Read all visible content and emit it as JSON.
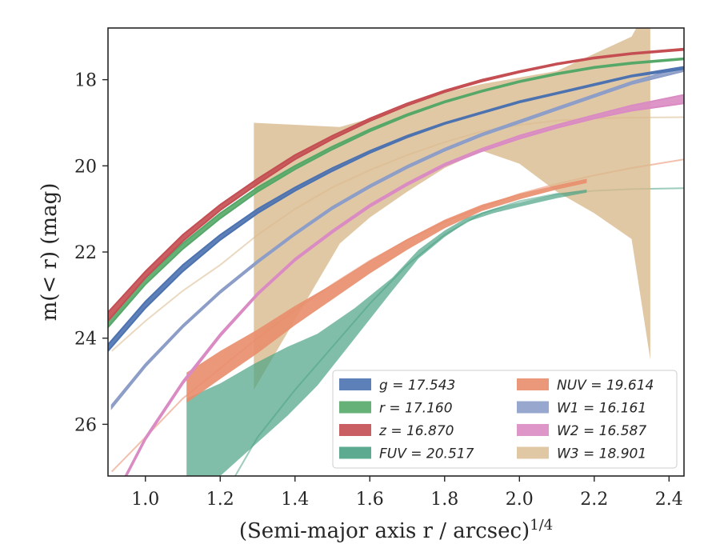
{
  "chart_data": {
    "type": "area",
    "xlabel": "(Semi-major axis r / arcsec)",
    "xlabel_sup": "1/4",
    "ylabel": "m(< r) (mag)",
    "xlim": [
      0.9,
      2.44
    ],
    "ylim": [
      27.2,
      16.8
    ],
    "y_inverted": true,
    "x_ticks": [
      1.0,
      1.2,
      1.4,
      1.6,
      1.8,
      2.0,
      2.2,
      2.4
    ],
    "x_tick_labels": [
      "1.0",
      "1.2",
      "1.4",
      "1.6",
      "1.8",
      "2.0",
      "2.2",
      "2.4"
    ],
    "y_ticks": [
      18,
      20,
      22,
      24,
      26
    ],
    "y_tick_labels": [
      "18",
      "20",
      "22",
      "24",
      "26"
    ],
    "grid": false,
    "legend_position": "lower-right",
    "series": [
      {
        "name": "g = 17.543",
        "legend_label": "g = 17.543",
        "color": "#4c72b0",
        "band_x": [
          0.9,
          1.0,
          1.1,
          1.2,
          1.3,
          1.4,
          1.5,
          1.6,
          1.7,
          1.8,
          1.9,
          2.0,
          2.1,
          2.2,
          2.3,
          2.44
        ],
        "band_upper": [
          24.15,
          23.15,
          22.3,
          21.6,
          21.0,
          20.5,
          20.05,
          19.65,
          19.3,
          19.0,
          18.75,
          18.5,
          18.3,
          18.1,
          17.9,
          17.7
        ],
        "band_lower": [
          24.3,
          23.3,
          22.45,
          21.72,
          21.1,
          20.58,
          20.12,
          19.7,
          19.34,
          19.03,
          18.78,
          18.53,
          18.33,
          18.13,
          17.93,
          17.75
        ],
        "ext_x": [],
        "ext_y": []
      },
      {
        "name": "r = 17.160",
        "legend_label": "r = 17.160",
        "color": "#55a868",
        "band_x": [
          0.9,
          1.0,
          1.1,
          1.2,
          1.3,
          1.4,
          1.5,
          1.6,
          1.7,
          1.8,
          1.9,
          2.0,
          2.1,
          2.2,
          2.3,
          2.44
        ],
        "band_upper": [
          23.6,
          22.6,
          21.8,
          21.1,
          20.5,
          20.0,
          19.55,
          19.15,
          18.8,
          18.5,
          18.25,
          18.03,
          17.85,
          17.7,
          17.6,
          17.5
        ],
        "band_lower": [
          23.75,
          22.75,
          21.93,
          21.22,
          20.6,
          20.08,
          19.62,
          19.2,
          18.84,
          18.53,
          18.28,
          18.06,
          17.88,
          17.73,
          17.63,
          17.53
        ],
        "ext_x": [],
        "ext_y": []
      },
      {
        "name": "z = 16.870",
        "legend_label": "z = 16.870",
        "color": "#c44e52",
        "band_x": [
          0.9,
          1.0,
          1.1,
          1.2,
          1.3,
          1.4,
          1.5,
          1.6,
          1.7,
          1.8,
          1.9,
          2.0,
          2.1,
          2.2,
          2.3,
          2.44
        ],
        "band_upper": [
          23.4,
          22.45,
          21.6,
          20.9,
          20.3,
          19.75,
          19.3,
          18.9,
          18.55,
          18.25,
          18.0,
          17.8,
          17.62,
          17.48,
          17.38,
          17.28
        ],
        "band_lower": [
          23.6,
          22.6,
          21.75,
          21.03,
          20.42,
          19.85,
          19.38,
          18.96,
          18.6,
          18.29,
          18.04,
          17.83,
          17.65,
          17.51,
          17.41,
          17.31
        ],
        "ext_x": [],
        "ext_y": []
      },
      {
        "name": "FUV = 20.517",
        "legend_label": "FUV = 20.517",
        "color": "#4aa284",
        "band_x": [
          1.11,
          1.2,
          1.29,
          1.38,
          1.46,
          1.56,
          1.66,
          1.73,
          1.8,
          1.86,
          1.93,
          2.0,
          2.1,
          2.18
        ],
        "band_upper": [
          25.4,
          25.05,
          24.6,
          24.2,
          23.9,
          23.3,
          22.6,
          21.95,
          21.5,
          21.2,
          21.0,
          20.85,
          20.65,
          20.55
        ],
        "band_lower": [
          27.2,
          27.2,
          26.5,
          25.8,
          25.1,
          24.0,
          22.9,
          22.15,
          21.65,
          21.3,
          21.1,
          20.95,
          20.75,
          20.62
        ],
        "ext_x": [
          1.2,
          1.3,
          1.4,
          1.5,
          1.6,
          1.7,
          1.8,
          1.9,
          2.0,
          2.1,
          2.2,
          2.3,
          2.44
        ],
        "ext_y": [
          27.8,
          26.3,
          25.2,
          24.2,
          23.2,
          22.3,
          21.6,
          21.1,
          20.82,
          20.65,
          20.58,
          20.54,
          20.52
        ]
      },
      {
        "name": "NUV = 19.614",
        "legend_label": "NUV = 19.614",
        "color": "#e98d6b",
        "band_x": [
          1.11,
          1.2,
          1.3,
          1.4,
          1.5,
          1.6,
          1.7,
          1.8,
          1.9,
          2.0,
          2.1,
          2.18
        ],
        "band_upper": [
          24.8,
          24.3,
          23.8,
          23.25,
          22.75,
          22.2,
          21.7,
          21.25,
          20.9,
          20.65,
          20.45,
          20.3
        ],
        "band_lower": [
          25.5,
          24.95,
          24.35,
          23.7,
          23.1,
          22.5,
          21.95,
          21.45,
          21.05,
          20.78,
          20.55,
          20.4
        ],
        "ext_x": [
          0.91,
          1.0,
          1.1,
          1.2,
          1.3,
          1.4,
          1.5,
          1.6,
          1.7,
          1.8,
          1.9,
          2.0,
          2.1,
          2.2,
          2.3,
          2.44
        ],
        "ext_y": [
          27.1,
          26.3,
          25.4,
          24.7,
          24.0,
          23.35,
          22.75,
          22.2,
          21.72,
          21.3,
          20.95,
          20.65,
          20.42,
          20.22,
          20.05,
          19.85
        ]
      },
      {
        "name": "W1 = 16.161",
        "legend_label": "W1 = 16.161",
        "color": "#8c9dc8",
        "band_x": [
          0.91,
          1.0,
          1.1,
          1.2,
          1.3,
          1.4,
          1.5,
          1.6,
          1.7,
          1.8,
          1.9,
          2.0,
          2.1,
          2.2,
          2.3,
          2.44
        ],
        "band_upper": [
          25.55,
          24.6,
          23.7,
          22.9,
          22.2,
          21.55,
          20.95,
          20.45,
          20.0,
          19.6,
          19.25,
          18.95,
          18.65,
          18.35,
          18.05,
          17.7
        ],
        "band_lower": [
          25.62,
          24.66,
          23.75,
          22.95,
          22.25,
          21.6,
          21.0,
          20.5,
          20.05,
          19.65,
          19.3,
          19.0,
          18.7,
          18.4,
          18.1,
          17.8
        ],
        "ext_x": [],
        "ext_y": []
      },
      {
        "name": "W2 = 16.587",
        "legend_label": "W2 = 16.587",
        "color": "#da8bc3",
        "band_x": [
          0.94,
          1.0,
          1.1,
          1.2,
          1.3,
          1.4,
          1.5,
          1.6,
          1.7,
          1.8,
          1.9,
          2.0,
          2.1,
          2.2,
          2.3,
          2.44
        ],
        "band_upper": [
          27.3,
          26.3,
          25.0,
          23.9,
          22.95,
          22.15,
          21.5,
          20.9,
          20.4,
          19.95,
          19.6,
          19.3,
          19.05,
          18.82,
          18.6,
          18.35
        ],
        "band_lower": [
          27.36,
          26.36,
          25.06,
          23.96,
          23.0,
          22.2,
          21.55,
          20.95,
          20.45,
          20.0,
          19.66,
          19.37,
          19.12,
          18.9,
          18.72,
          18.55
        ],
        "ext_x": [],
        "ext_y": []
      },
      {
        "name": "W3 = 18.901",
        "legend_label": "W3 = 18.901",
        "color": "#d8b98c",
        "band_x": [
          1.29,
          1.52,
          1.6,
          1.7,
          1.8,
          1.9,
          2.0,
          2.1,
          2.2,
          2.3,
          2.35
        ],
        "band_upper": [
          19.0,
          19.1,
          18.9,
          18.6,
          18.3,
          18.1,
          17.95,
          17.8,
          17.4,
          17.0,
          16.2
        ],
        "band_lower": [
          25.2,
          21.8,
          21.2,
          20.6,
          20.05,
          19.65,
          19.95,
          20.6,
          21.1,
          21.7,
          24.5
        ],
        "ext_x": [
          0.91,
          1.0,
          1.1,
          1.2,
          1.3,
          1.4,
          1.5,
          1.6,
          1.7,
          1.8,
          1.9,
          2.0,
          2.1,
          2.2,
          2.3,
          2.44
        ],
        "ext_y": [
          24.3,
          23.6,
          22.9,
          22.3,
          21.6,
          21.0,
          20.5,
          20.1,
          19.75,
          19.45,
          19.2,
          19.05,
          18.95,
          18.9,
          18.88,
          18.87
        ]
      }
    ]
  }
}
